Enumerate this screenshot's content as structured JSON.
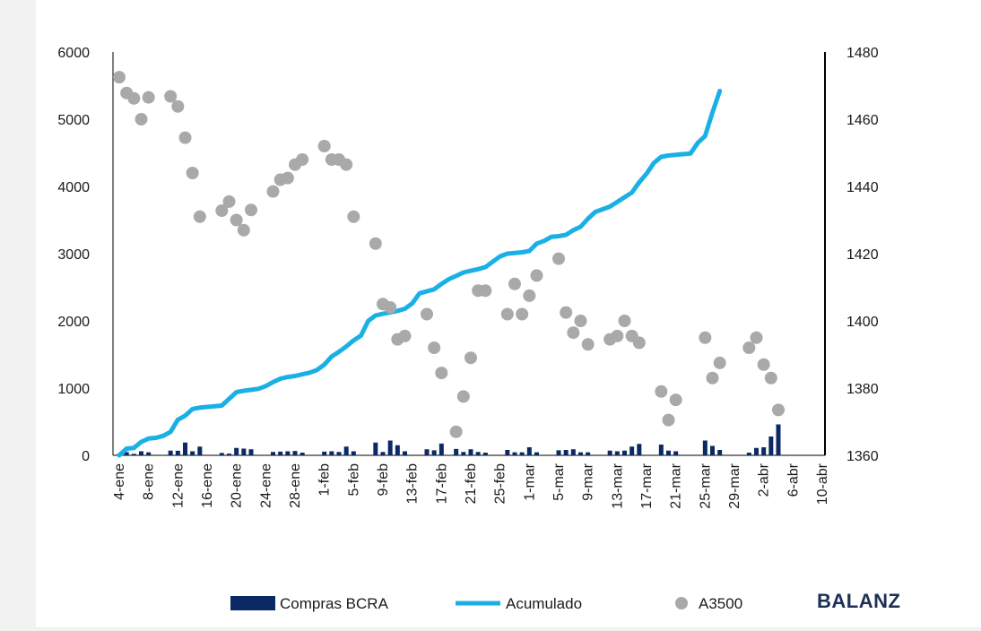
{
  "chart_data": {
    "type": "bar+line+scatter",
    "brand": "BALANZ",
    "colors": {
      "bars": "#0b2a63",
      "line": "#1ab0e6",
      "dots": "#a9a9a9"
    },
    "y_left": {
      "min": 0,
      "max": 6000,
      "ticks": [
        "0",
        "1000",
        "2000",
        "3000",
        "4000",
        "5000",
        "6000"
      ]
    },
    "y_right": {
      "min": 1360,
      "max": 1480,
      "ticks": [
        "1360",
        "1380",
        "1400",
        "1420",
        "1440",
        "1460",
        "1480"
      ]
    },
    "x_ticks": [
      {
        "label": "4-ene",
        "i": 0
      },
      {
        "label": "8-ene",
        "i": 4
      },
      {
        "label": "12-ene",
        "i": 8
      },
      {
        "label": "16-ene",
        "i": 12
      },
      {
        "label": "20-ene",
        "i": 16
      },
      {
        "label": "24-ene",
        "i": 20
      },
      {
        "label": "28-ene",
        "i": 24
      },
      {
        "label": "1-feb",
        "i": 28
      },
      {
        "label": "5-feb",
        "i": 32
      },
      {
        "label": "9-feb",
        "i": 36
      },
      {
        "label": "13-feb",
        "i": 40
      },
      {
        "label": "17-feb",
        "i": 44
      },
      {
        "label": "21-feb",
        "i": 48
      },
      {
        "label": "25-feb",
        "i": 52
      },
      {
        "label": "1-mar",
        "i": 56
      },
      {
        "label": "5-mar",
        "i": 60
      },
      {
        "label": "9-mar",
        "i": 64
      },
      {
        "label": "13-mar",
        "i": 68
      },
      {
        "label": "17-mar",
        "i": 72
      },
      {
        "label": "21-mar",
        "i": 76
      },
      {
        "label": "25-mar",
        "i": 80
      },
      {
        "label": "29-mar",
        "i": 84
      },
      {
        "label": "2-abr",
        "i": 88
      },
      {
        "label": "6-abr",
        "i": 92
      },
      {
        "label": "10-abr",
        "i": 96
      }
    ],
    "x_count": 97,
    "legend": {
      "bars": "Compras BCRA",
      "line": "Acumulado",
      "dots": "A3500"
    },
    "series_bars": {
      "name": "Compras BCRA",
      "points": [
        [
          0,
          21
        ],
        [
          1,
          48
        ],
        [
          2,
          22
        ],
        [
          3,
          60
        ],
        [
          4,
          45
        ],
        [
          7,
          70
        ],
        [
          8,
          68
        ],
        [
          9,
          190
        ],
        [
          10,
          60
        ],
        [
          11,
          130
        ],
        [
          14,
          35
        ],
        [
          15,
          25
        ],
        [
          16,
          110
        ],
        [
          17,
          100
        ],
        [
          18,
          90
        ],
        [
          21,
          50
        ],
        [
          22,
          55
        ],
        [
          23,
          60
        ],
        [
          24,
          65
        ],
        [
          25,
          40
        ],
        [
          28,
          55
        ],
        [
          29,
          60
        ],
        [
          30,
          50
        ],
        [
          31,
          130
        ],
        [
          32,
          60
        ],
        [
          35,
          190
        ],
        [
          36,
          50
        ],
        [
          37,
          220
        ],
        [
          38,
          150
        ],
        [
          39,
          60
        ],
        [
          42,
          90
        ],
        [
          43,
          75
        ],
        [
          44,
          175
        ],
        [
          46,
          95
        ],
        [
          47,
          50
        ],
        [
          48,
          90
        ],
        [
          49,
          50
        ],
        [
          50,
          40
        ],
        [
          53,
          80
        ],
        [
          54,
          45
        ],
        [
          55,
          45
        ],
        [
          56,
          120
        ],
        [
          57,
          45
        ],
        [
          60,
          75
        ],
        [
          61,
          80
        ],
        [
          62,
          90
        ],
        [
          63,
          45
        ],
        [
          64,
          45
        ],
        [
          67,
          70
        ],
        [
          68,
          60
        ],
        [
          69,
          70
        ],
        [
          70,
          130
        ],
        [
          71,
          170
        ],
        [
          74,
          160
        ],
        [
          75,
          70
        ],
        [
          76,
          60
        ],
        [
          80,
          220
        ],
        [
          81,
          140
        ],
        [
          82,
          80
        ],
        [
          86,
          40
        ],
        [
          87,
          110
        ],
        [
          88,
          120
        ],
        [
          89,
          280
        ],
        [
          90,
          460
        ]
      ]
    },
    "series_line": {
      "name": "Acumulado",
      "points": [
        [
          0,
          0
        ],
        [
          1,
          100
        ],
        [
          2,
          110
        ],
        [
          3,
          200
        ],
        [
          4,
          250
        ],
        [
          5,
          260
        ],
        [
          6,
          290
        ],
        [
          7,
          350
        ],
        [
          8,
          530
        ],
        [
          9,
          590
        ],
        [
          10,
          690
        ],
        [
          11,
          710
        ],
        [
          12,
          720
        ],
        [
          13,
          730
        ],
        [
          14,
          740
        ],
        [
          15,
          840
        ],
        [
          16,
          940
        ],
        [
          17,
          960
        ],
        [
          18,
          975
        ],
        [
          19,
          990
        ],
        [
          20,
          1030
        ],
        [
          21,
          1090
        ],
        [
          22,
          1140
        ],
        [
          23,
          1165
        ],
        [
          24,
          1180
        ],
        [
          25,
          1205
        ],
        [
          26,
          1230
        ],
        [
          27,
          1270
        ],
        [
          28,
          1350
        ],
        [
          29,
          1470
        ],
        [
          30,
          1540
        ],
        [
          31,
          1620
        ],
        [
          32,
          1710
        ],
        [
          33,
          1780
        ],
        [
          34,
          2000
        ],
        [
          35,
          2080
        ],
        [
          36,
          2105
        ],
        [
          37,
          2125
        ],
        [
          38,
          2150
        ],
        [
          39,
          2180
        ],
        [
          40,
          2260
        ],
        [
          41,
          2410
        ],
        [
          42,
          2440
        ],
        [
          43,
          2470
        ],
        [
          44,
          2550
        ],
        [
          45,
          2620
        ],
        [
          46,
          2670
        ],
        [
          47,
          2720
        ],
        [
          48,
          2745
        ],
        [
          49,
          2770
        ],
        [
          50,
          2800
        ],
        [
          51,
          2880
        ],
        [
          52,
          2960
        ],
        [
          53,
          3000
        ],
        [
          54,
          3010
        ],
        [
          55,
          3020
        ],
        [
          56,
          3040
        ],
        [
          57,
          3150
        ],
        [
          58,
          3190
        ],
        [
          59,
          3250
        ],
        [
          60,
          3260
        ],
        [
          61,
          3280
        ],
        [
          62,
          3350
        ],
        [
          63,
          3400
        ],
        [
          64,
          3520
        ],
        [
          65,
          3620
        ],
        [
          66,
          3660
        ],
        [
          67,
          3700
        ],
        [
          68,
          3770
        ],
        [
          69,
          3840
        ],
        [
          70,
          3910
        ],
        [
          71,
          4060
        ],
        [
          72,
          4190
        ],
        [
          73,
          4350
        ],
        [
          74,
          4440
        ],
        [
          75,
          4460
        ],
        [
          76,
          4470
        ],
        [
          77,
          4480
        ],
        [
          78,
          4490
        ],
        [
          79,
          4650
        ],
        [
          80,
          4750
        ],
        [
          81,
          5100
        ],
        [
          82,
          5420
        ]
      ]
    },
    "series_dots": {
      "name": "A3500",
      "points": [
        [
          0,
          1472.5
        ],
        [
          1,
          1467.8
        ],
        [
          2,
          1466.2
        ],
        [
          3,
          1460
        ],
        [
          4,
          1466.5
        ],
        [
          7,
          1466.8
        ],
        [
          8,
          1463.8
        ],
        [
          9,
          1454.5
        ],
        [
          10,
          1444
        ],
        [
          11,
          1431
        ],
        [
          14,
          1432.8
        ],
        [
          15,
          1435.5
        ],
        [
          16,
          1430
        ],
        [
          17,
          1427
        ],
        [
          18,
          1433
        ],
        [
          21,
          1438.5
        ],
        [
          22,
          1442
        ],
        [
          23,
          1442.5
        ],
        [
          24,
          1446.5
        ],
        [
          25,
          1448
        ],
        [
          28,
          1452
        ],
        [
          29,
          1448
        ],
        [
          30,
          1448
        ],
        [
          31,
          1446.5
        ],
        [
          32,
          1431
        ],
        [
          35,
          1423
        ],
        [
          36,
          1405
        ],
        [
          37,
          1404
        ],
        [
          38,
          1394.5
        ],
        [
          39,
          1395.5
        ],
        [
          42,
          1402
        ],
        [
          43,
          1392
        ],
        [
          44,
          1384.5
        ],
        [
          46,
          1367
        ],
        [
          47,
          1377.5
        ],
        [
          48,
          1389
        ],
        [
          49,
          1409
        ],
        [
          50,
          1409
        ],
        [
          53,
          1402
        ],
        [
          54,
          1411
        ],
        [
          55,
          1402
        ],
        [
          56,
          1407.5
        ],
        [
          57,
          1413.5
        ],
        [
          60,
          1418.5
        ],
        [
          61,
          1402.5
        ],
        [
          62,
          1396.5
        ],
        [
          63,
          1400
        ],
        [
          64,
          1393
        ],
        [
          67,
          1394.5
        ],
        [
          68,
          1395.5
        ],
        [
          69,
          1400
        ],
        [
          70,
          1395.5
        ],
        [
          71,
          1393.5
        ],
        [
          74,
          1379
        ],
        [
          75,
          1370.5
        ],
        [
          76,
          1376.5
        ],
        [
          80,
          1395
        ],
        [
          81,
          1383
        ],
        [
          82,
          1387.5
        ],
        [
          86,
          1392
        ],
        [
          87,
          1395
        ],
        [
          88,
          1387
        ],
        [
          89,
          1383
        ],
        [
          90,
          1373.5
        ]
      ]
    }
  }
}
